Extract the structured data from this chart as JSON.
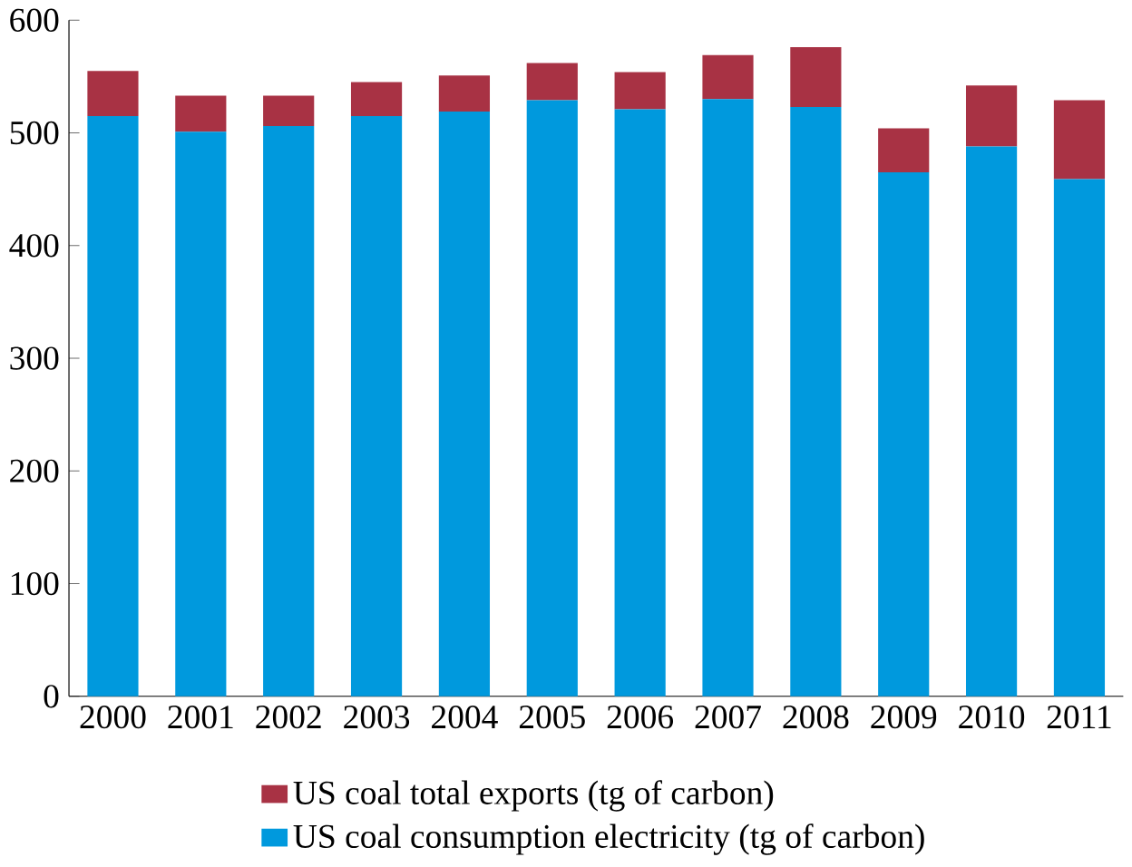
{
  "chart_data": {
    "type": "bar",
    "stacked": true,
    "categories": [
      "2000",
      "2001",
      "2002",
      "2003",
      "2004",
      "2005",
      "2006",
      "2007",
      "2008",
      "2009",
      "2010",
      "2011"
    ],
    "series": [
      {
        "name": "US coal consumption electricity (tg of carbon)",
        "color": "#0099dd",
        "values": [
          515,
          501,
          506,
          515,
          519,
          529,
          521,
          530,
          523,
          465,
          488,
          459
        ]
      },
      {
        "name": "US coal total exports (tg of carbon)",
        "color": "#a83244",
        "values": [
          40,
          32,
          27,
          30,
          32,
          33,
          33,
          39,
          53,
          39,
          54,
          70
        ]
      }
    ],
    "ylim": [
      0,
      600
    ],
    "yticks": [
      0,
      100,
      200,
      300,
      400,
      500,
      600
    ],
    "legend": "bottom",
    "grid": false
  }
}
